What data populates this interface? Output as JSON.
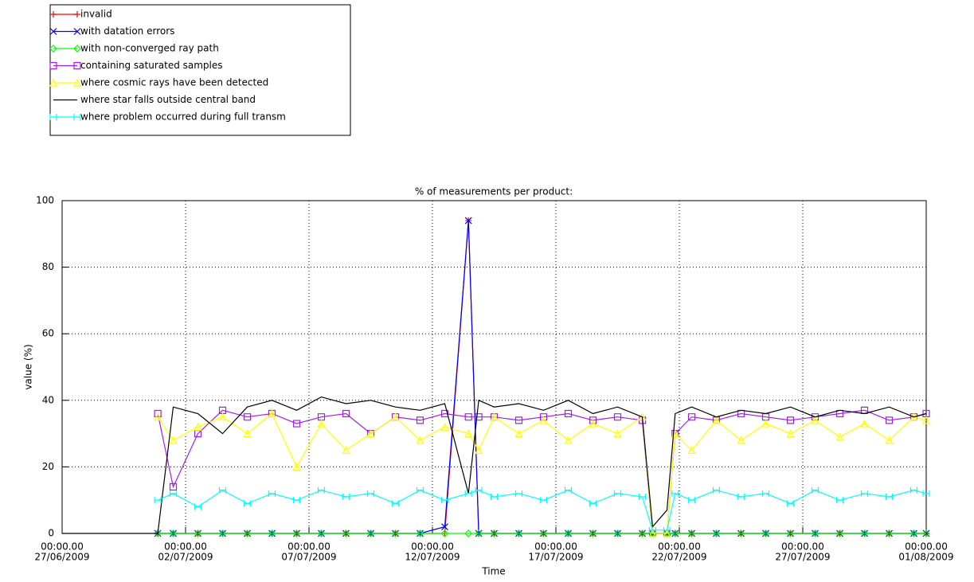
{
  "chart_data": {
    "type": "line",
    "title": "% of measurements per product:",
    "xlabel": "Time",
    "ylabel": "value (%)",
    "x": [
      "2009-06-27T00:00",
      "2009-06-30T21:00",
      "2009-07-01T12:00",
      "2009-07-02T12:00",
      "2009-07-03T12:00",
      "2009-07-04T12:00",
      "2009-07-05T12:00",
      "2009-07-06T12:00",
      "2009-07-07T12:00",
      "2009-07-08T12:00",
      "2009-07-09T12:00",
      "2009-07-10T12:00",
      "2009-07-11T12:00",
      "2009-07-12T12:00",
      "2009-07-13T11:00",
      "2009-07-13T21:00",
      "2009-07-14T12:00",
      "2009-07-15T12:00",
      "2009-07-16T12:00",
      "2009-07-17T12:00",
      "2009-07-18T12:00",
      "2009-07-19T12:00",
      "2009-07-20T12:00",
      "2009-07-20T22:00",
      "2009-07-21T12:00",
      "2009-07-21T20:00",
      "2009-07-22T12:00",
      "2009-07-23T12:00",
      "2009-07-24T12:00",
      "2009-07-25T12:00",
      "2009-07-26T12:00",
      "2009-07-27T12:00",
      "2009-07-28T12:00",
      "2009-07-29T12:00",
      "2009-07-30T12:00",
      "2009-07-31T12:00",
      "2009-08-01T00:00"
    ],
    "series": [
      {
        "name": "invalid",
        "color": "#ff0000",
        "marker": "plus",
        "values": [
          null,
          0,
          0,
          0,
          0,
          0,
          0,
          0,
          0,
          0,
          0,
          0,
          0,
          0,
          94,
          0,
          0,
          0,
          0,
          0,
          0,
          0,
          0,
          0,
          0,
          0,
          0,
          0,
          0,
          0,
          0,
          0,
          0,
          0,
          0,
          0,
          0
        ]
      },
      {
        "name": "with datation errors",
        "color": "#0000ff",
        "marker": "cross",
        "values": [
          null,
          0,
          0,
          0,
          0,
          0,
          0,
          0,
          0,
          0,
          0,
          0,
          0,
          2,
          94,
          0,
          0,
          0,
          0,
          0,
          0,
          0,
          0,
          0,
          0,
          0,
          0,
          0,
          0,
          0,
          0,
          0,
          0,
          0,
          0,
          0,
          0
        ]
      },
      {
        "name": "with non-converged ray path",
        "color": "#00ff00",
        "marker": "diamond",
        "values": [
          null,
          0,
          0,
          0,
          0,
          0,
          0,
          0,
          0,
          0,
          0,
          0,
          0,
          0,
          0,
          0,
          0,
          0,
          0,
          0,
          0,
          0,
          0,
          0,
          0,
          0,
          0,
          0,
          0,
          0,
          0,
          0,
          0,
          0,
          0,
          0,
          0
        ]
      },
      {
        "name": "containing saturated samples",
        "color": "#a020f0",
        "marker": "square",
        "values": [
          null,
          36,
          14,
          30,
          37,
          35,
          36,
          33,
          35,
          36,
          30,
          35,
          34,
          36,
          35,
          35,
          35,
          34,
          35,
          36,
          34,
          35,
          34,
          0,
          0,
          30,
          35,
          34,
          36,
          35,
          34,
          35,
          36,
          37,
          34,
          35,
          36
        ]
      },
      {
        "name": "where cosmic rays have been detected",
        "color": "#ffff00",
        "marker": "triangle",
        "values": [
          null,
          35,
          28,
          32,
          35,
          30,
          36,
          20,
          33,
          25,
          30,
          35,
          28,
          32,
          30,
          25,
          35,
          30,
          34,
          28,
          33,
          30,
          35,
          0,
          0,
          30,
          25,
          34,
          28,
          33,
          30,
          34,
          29,
          33,
          28,
          35,
          34
        ]
      },
      {
        "name": "where star falls outside central band",
        "color": "#000000",
        "marker": "none",
        "values": [
          0,
          0,
          38,
          36,
          30,
          38,
          40,
          37,
          41,
          39,
          40,
          38,
          37,
          39,
          12,
          40,
          38,
          39,
          37,
          40,
          36,
          38,
          35,
          2,
          7,
          36,
          38,
          35,
          37,
          36,
          38,
          35,
          37,
          36,
          38,
          35,
          36
        ]
      },
      {
        "name": "where problem occurred during full transm",
        "color": "#00ffff",
        "marker": "bar",
        "values": [
          null,
          10,
          12,
          8,
          13,
          9,
          12,
          10,
          13,
          11,
          12,
          9,
          13,
          10,
          12,
          13,
          11,
          12,
          10,
          13,
          9,
          12,
          11,
          1,
          1,
          12,
          10,
          13,
          11,
          12,
          9,
          13,
          10,
          12,
          11,
          13,
          12
        ]
      }
    ],
    "xlim": [
      "2009-06-27T00:00",
      "2009-08-01T00:00"
    ],
    "xticks": [
      {
        "value": "2009-06-27T00:00",
        "label": [
          "00:00.00",
          "27/06/2009"
        ]
      },
      {
        "value": "2009-07-02T00:00",
        "label": [
          "00:00.00",
          "02/07/2009"
        ]
      },
      {
        "value": "2009-07-07T00:00",
        "label": [
          "00:00.00",
          "07/07/2009"
        ]
      },
      {
        "value": "2009-07-12T00:00",
        "label": [
          "00:00.00",
          "12/07/2009"
        ]
      },
      {
        "value": "2009-07-17T00:00",
        "label": [
          "00:00.00",
          "17/07/2009"
        ]
      },
      {
        "value": "2009-07-22T00:00",
        "label": [
          "00:00.00",
          "22/07/2009"
        ]
      },
      {
        "value": "2009-07-27T00:00",
        "label": [
          "00:00.00",
          "27/07/2009"
        ]
      },
      {
        "value": "2009-08-01T00:00",
        "label": [
          "00:00.00",
          "01/08/2009"
        ]
      }
    ],
    "ylim": [
      0,
      100
    ],
    "yticks": [
      0,
      20,
      40,
      60,
      80,
      100
    ],
    "grid": true,
    "legend": "top-left"
  }
}
